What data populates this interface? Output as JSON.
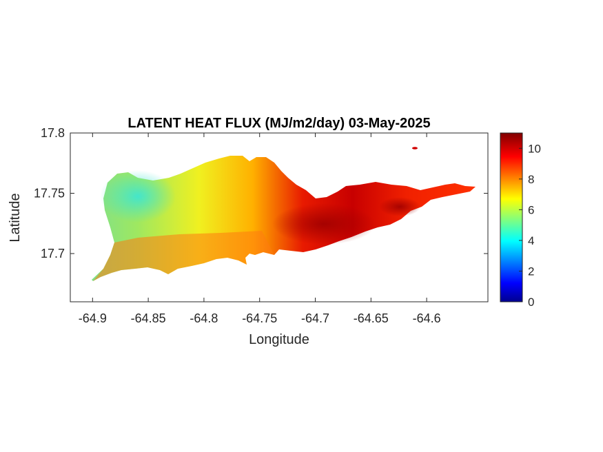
{
  "chart_data": {
    "type": "heatmap",
    "title": "LATENT HEAT FLUX (MJ/m2/day) 03-May-2025",
    "xlabel": "Longitude",
    "ylabel": "Latitude",
    "xlim": [
      -64.92,
      -64.545
    ],
    "ylim": [
      17.66,
      17.8
    ],
    "x_ticks": [
      "-64.9",
      "-64.85",
      "-64.8",
      "-64.75",
      "-64.7",
      "-64.65",
      "-64.6"
    ],
    "x_tick_values": [
      -64.9,
      -64.85,
      -64.8,
      -64.75,
      -64.7,
      -64.65,
      -64.6
    ],
    "y_ticks": [
      "17.7",
      "17.75",
      "17.8"
    ],
    "y_tick_values": [
      17.7,
      17.75,
      17.8
    ],
    "colorbar": {
      "colormap": "jet",
      "range": [
        0,
        11
      ],
      "ticks": [
        "0",
        "2",
        "4",
        "6",
        "8",
        "10"
      ],
      "tick_values": [
        0,
        2,
        4,
        6,
        8,
        10
      ]
    },
    "region_value_pattern": [
      {
        "lon": -64.88,
        "lat": 17.755,
        "value": 4.5
      },
      {
        "lon": -64.84,
        "lat": 17.74,
        "value": 6.0
      },
      {
        "lon": -64.8,
        "lat": 17.75,
        "value": 6.8
      },
      {
        "lon": -64.78,
        "lat": 17.73,
        "value": 7.2
      },
      {
        "lon": -64.86,
        "lat": 17.705,
        "value": 8.2
      },
      {
        "lon": -64.82,
        "lat": 17.7,
        "value": 8.6
      },
      {
        "lon": -64.76,
        "lat": 17.705,
        "value": 9.6
      },
      {
        "lon": -64.72,
        "lat": 17.72,
        "value": 10.3
      },
      {
        "lon": -64.69,
        "lat": 17.725,
        "value": 10.6
      },
      {
        "lon": -64.65,
        "lat": 17.735,
        "value": 9.4
      },
      {
        "lon": -64.6,
        "lat": 17.75,
        "value": 9.2
      },
      {
        "lon": -64.56,
        "lat": 17.755,
        "value": 9.6
      }
    ]
  }
}
